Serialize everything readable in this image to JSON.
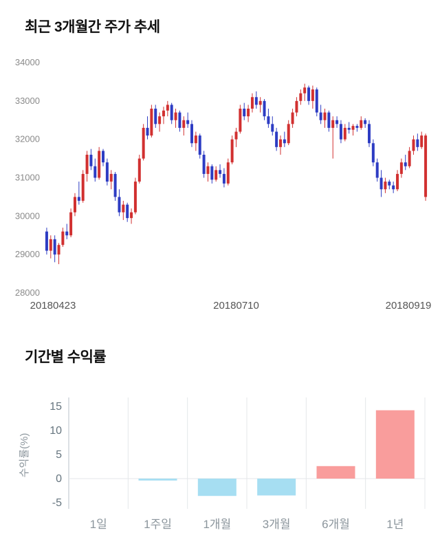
{
  "chart_data": [
    {
      "type": "candlestick",
      "title": "최근 3개월간 주가 추세",
      "ylim": [
        28000,
        34000
      ],
      "yticks": [
        34000,
        33000,
        32000,
        31000,
        30000,
        29000,
        28000
      ],
      "xtick_labels": [
        "20180423",
        "20180710",
        "20180919"
      ],
      "up_color": "#d13030",
      "down_color": "#2d3cc3",
      "grid": false,
      "candles": [
        [
          29600,
          29700,
          29000,
          29100
        ],
        [
          29100,
          29500,
          28900,
          29400
        ],
        [
          29400,
          29500,
          28800,
          29000
        ],
        [
          29000,
          29300,
          28750,
          29250
        ],
        [
          29250,
          29700,
          29200,
          29600
        ],
        [
          29600,
          29800,
          29400,
          29500
        ],
        [
          29500,
          30200,
          29450,
          30100
        ],
        [
          30100,
          30600,
          30000,
          30500
        ],
        [
          30500,
          30900,
          30300,
          30400
        ],
        [
          30400,
          31200,
          30350,
          31100
        ],
        [
          31100,
          31700,
          30900,
          31600
        ],
        [
          31600,
          31750,
          31200,
          31300
        ],
        [
          31300,
          31500,
          30900,
          31000
        ],
        [
          31000,
          31800,
          30950,
          31700
        ],
        [
          31700,
          31750,
          31300,
          31400
        ],
        [
          31400,
          31500,
          30800,
          30900
        ],
        [
          30900,
          31200,
          30700,
          31100
        ],
        [
          31100,
          31150,
          30400,
          30500
        ],
        [
          30500,
          30700,
          30000,
          30100
        ],
        [
          30100,
          30400,
          29900,
          30300
        ],
        [
          30300,
          30350,
          29850,
          29950
        ],
        [
          29950,
          30200,
          29800,
          30100
        ],
        [
          30100,
          31000,
          30050,
          30900
        ],
        [
          30900,
          31600,
          30850,
          31500
        ],
        [
          31500,
          32400,
          31450,
          32300
        ],
        [
          32300,
          32600,
          32000,
          32100
        ],
        [
          32100,
          32900,
          32050,
          32800
        ],
        [
          32800,
          32900,
          32300,
          32400
        ],
        [
          32400,
          32700,
          32200,
          32600
        ],
        [
          32600,
          32850,
          32400,
          32750
        ],
        [
          32750,
          33000,
          32600,
          32900
        ],
        [
          32900,
          32950,
          32400,
          32500
        ],
        [
          32500,
          32800,
          32300,
          32700
        ],
        [
          32700,
          32750,
          32200,
          32300
        ],
        [
          32300,
          32600,
          32100,
          32500
        ],
        [
          32500,
          32700,
          32300,
          32400
        ],
        [
          32400,
          32500,
          31800,
          31900
        ],
        [
          31900,
          32200,
          31700,
          32100
        ],
        [
          32100,
          32150,
          31500,
          31600
        ],
        [
          31600,
          31700,
          31000,
          31100
        ],
        [
          31100,
          31400,
          30900,
          31300
        ],
        [
          31300,
          31350,
          30850,
          30950
        ],
        [
          30950,
          31300,
          30900,
          31200
        ],
        [
          31200,
          31350,
          31000,
          31100
        ],
        [
          31100,
          31250,
          30750,
          30850
        ],
        [
          30850,
          31500,
          30800,
          31400
        ],
        [
          31400,
          32100,
          31350,
          32000
        ],
        [
          32000,
          32300,
          31800,
          32200
        ],
        [
          32200,
          32900,
          32150,
          32800
        ],
        [
          32800,
          32950,
          32500,
          32600
        ],
        [
          32600,
          32900,
          32450,
          32800
        ],
        [
          32800,
          33200,
          32700,
          33100
        ],
        [
          33100,
          33250,
          32800,
          32900
        ],
        [
          32900,
          33100,
          32700,
          33000
        ],
        [
          33000,
          33050,
          32500,
          32600
        ],
        [
          32600,
          32800,
          32300,
          32400
        ],
        [
          32400,
          32600,
          32100,
          32200
        ],
        [
          32200,
          32300,
          31700,
          31800
        ],
        [
          31800,
          32100,
          31600,
          32000
        ],
        [
          32000,
          32200,
          31800,
          31900
        ],
        [
          31900,
          32500,
          31850,
          32400
        ],
        [
          32400,
          32800,
          32300,
          32700
        ],
        [
          32700,
          33100,
          32600,
          33000
        ],
        [
          33000,
          33300,
          32900,
          33200
        ],
        [
          33200,
          33450,
          33000,
          33350
        ],
        [
          33350,
          33400,
          32900,
          33000
        ],
        [
          33000,
          33400,
          32800,
          33300
        ],
        [
          33300,
          33350,
          32600,
          32700
        ],
        [
          32700,
          32900,
          32400,
          32500
        ],
        [
          32500,
          32800,
          32300,
          32700
        ],
        [
          32700,
          32750,
          32200,
          32300
        ],
        [
          32300,
          32600,
          31500,
          32500
        ],
        [
          32500,
          32600,
          32300,
          32400
        ],
        [
          32400,
          32500,
          31900,
          32000
        ],
        [
          32000,
          32400,
          31950,
          32300
        ],
        [
          32300,
          32450,
          32150,
          32250
        ],
        [
          32250,
          32400,
          32100,
          32350
        ],
        [
          32350,
          32400,
          32200,
          32300
        ],
        [
          32300,
          32600,
          32250,
          32500
        ],
        [
          32500,
          32550,
          32300,
          32400
        ],
        [
          32400,
          32500,
          31800,
          31900
        ],
        [
          31900,
          32000,
          31300,
          31400
        ],
        [
          31400,
          31500,
          30900,
          31000
        ],
        [
          31000,
          31200,
          30500,
          30700
        ],
        [
          30700,
          31000,
          30600,
          30900
        ],
        [
          30900,
          30950,
          30700,
          30800
        ],
        [
          30800,
          30900,
          30600,
          30700
        ],
        [
          30700,
          31200,
          30650,
          31100
        ],
        [
          31100,
          31500,
          31000,
          31400
        ],
        [
          31400,
          31600,
          31200,
          31300
        ],
        [
          31300,
          31800,
          31250,
          31700
        ],
        [
          31700,
          32100,
          31600,
          32000
        ],
        [
          32000,
          32150,
          31700,
          31800
        ],
        [
          31800,
          32200,
          31750,
          32100
        ],
        [
          30500,
          32150,
          30400,
          32100
        ]
      ]
    },
    {
      "type": "bar",
      "title": "기간별 수익률",
      "ylabel": "수익률(%)",
      "categories": [
        "1일",
        "1주일",
        "1개월",
        "3개월",
        "6개월",
        "1년"
      ],
      "values": [
        0,
        -0.4,
        -3.6,
        -3.5,
        2.6,
        14.2
      ],
      "ylim": [
        -5,
        15
      ],
      "yticks": [
        15,
        10,
        5,
        0,
        -5
      ],
      "grid": true,
      "legend": "none",
      "positive_color": "#f99d9c",
      "negative_color": "#a6def2"
    }
  ]
}
